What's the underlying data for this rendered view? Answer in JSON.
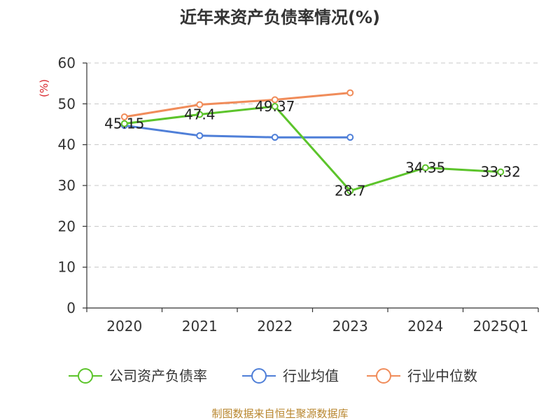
{
  "chart_data": {
    "type": "line",
    "title": "近年来资产负债率情况(%)",
    "ylabel": "(%)",
    "xlabel": "",
    "categories": [
      "2020",
      "2021",
      "2022",
      "2023",
      "2024",
      "2025Q1"
    ],
    "ylim": [
      0,
      60
    ],
    "yticks": [
      0,
      10,
      20,
      30,
      40,
      50,
      60
    ],
    "grid": true,
    "legend_position": "bottom",
    "series": [
      {
        "name": "公司资产负债率",
        "color": "#5cc42b",
        "values": [
          45.15,
          47.4,
          49.37,
          28.7,
          34.35,
          33.32
        ],
        "labels": [
          "45.15",
          "47.4",
          "49.37",
          "28.7",
          "34.35",
          "33.32"
        ]
      },
      {
        "name": "行业均值",
        "color": "#4f7fd8",
        "values": [
          44.7,
          42.2,
          41.8,
          41.8,
          null,
          null
        ]
      },
      {
        "name": "行业中位数",
        "color": "#f08c5a",
        "values": [
          46.8,
          49.8,
          51.0,
          52.7,
          null,
          null
        ]
      }
    ]
  },
  "source_note": "制图数据来自恒生聚源数据库"
}
